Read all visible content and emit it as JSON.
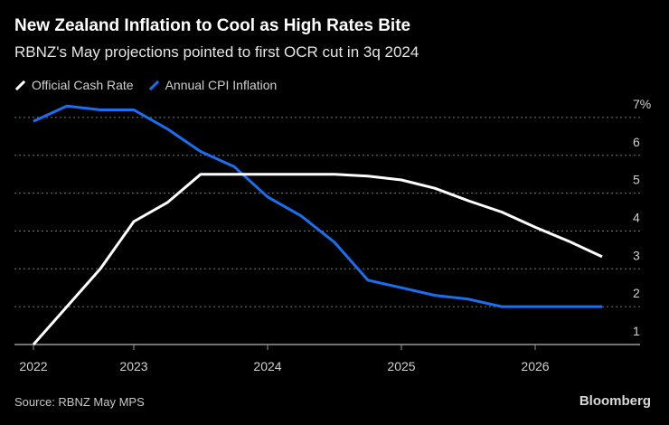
{
  "header": {
    "title": "New Zealand Inflation to Cool as High Rates Bite",
    "subtitle": "RBNZ's May projections pointed to first OCR cut in 3q 2024"
  },
  "footer": {
    "source": "Source: RBNZ May MPS",
    "brand": "Bloomberg"
  },
  "colors": {
    "ocr": "#ffffff",
    "cpi": "#1a6ff0",
    "grid": "#777777",
    "axis": "#999999"
  },
  "chart_data": {
    "type": "line",
    "title": "New Zealand Inflation to Cool as High Rates Bite",
    "ylabel": "%",
    "ylim": [
      1,
      7
    ],
    "xlim": [
      2022.25,
      2026.5
    ],
    "y_ticks": [
      1,
      2,
      3,
      4,
      5,
      6,
      7
    ],
    "y_tick_labels": [
      "1",
      "2",
      "3",
      "4",
      "5",
      "6",
      "7%"
    ],
    "x_ticks": [
      2022.25,
      2023,
      2024,
      2025,
      2026
    ],
    "x_tick_labels": [
      "2022",
      "2023",
      "2024",
      "2025",
      "2026"
    ],
    "grid": true,
    "legend_placement": "top-left",
    "x": [
      2022.25,
      2022.5,
      2022.75,
      2023.0,
      2023.25,
      2023.5,
      2023.75,
      2024.0,
      2024.25,
      2024.5,
      2024.75,
      2025.0,
      2025.25,
      2025.5,
      2025.75,
      2026.0,
      2026.25,
      2026.5
    ],
    "series": [
      {
        "name": "Official Cash Rate",
        "key": "ocr",
        "values": [
          1.0,
          2.0,
          3.0,
          4.25,
          4.75,
          5.5,
          5.5,
          5.5,
          5.5,
          5.5,
          5.45,
          5.35,
          5.13,
          4.8,
          4.5,
          4.1,
          3.73,
          3.32
        ]
      },
      {
        "name": "Annual CPI Inflation",
        "key": "cpi",
        "values": [
          6.9,
          7.3,
          7.2,
          7.2,
          6.7,
          6.1,
          5.7,
          4.9,
          4.4,
          3.7,
          2.7,
          2.5,
          2.3,
          2.2,
          2.0,
          2.0,
          2.0,
          2.0
        ]
      }
    ]
  }
}
